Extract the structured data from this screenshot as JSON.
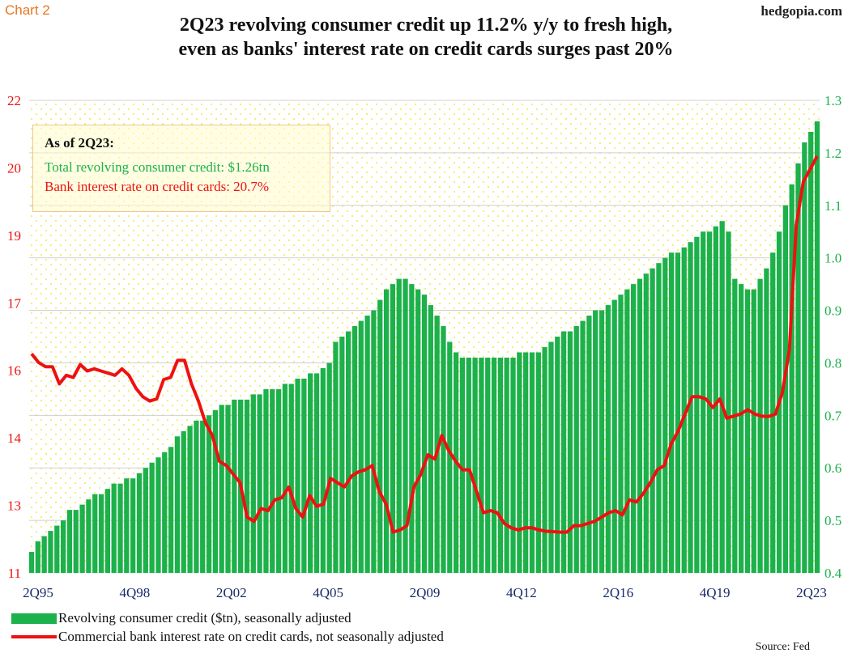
{
  "header": {
    "chart_label": "Chart 2",
    "site": "hedgopia.com",
    "title_line1": "2Q23 revolving consumer credit up 11.2% y/y to fresh high,",
    "title_line2": "even as banks' interest rate on credit cards surges past 20%"
  },
  "annotation": {
    "heading": "As of 2Q23:",
    "line1": "Total revolving consumer credit: $1.26tn",
    "line2": "Bank interest rate on credit cards: 20.7%"
  },
  "legend": {
    "series1": "Revolving consumer credit ($tn), seasonally adjusted",
    "series2": "Commercial bank interest rate on credit cards, not seasonally adjusted"
  },
  "source": "Source: Fed",
  "colors": {
    "bar": "#1cb14a",
    "line": "#ee1111",
    "left_axis": "#ee1111",
    "right_axis": "#1cb14a",
    "x_axis": "#1a2a6c",
    "dots": "#f2ec6a"
  },
  "chart_data": {
    "type": "bar",
    "x_tick_labels": [
      "2Q95",
      "4Q98",
      "2Q02",
      "4Q05",
      "2Q09",
      "4Q12",
      "2Q16",
      "4Q19",
      "2Q23"
    ],
    "left_axis": {
      "range": [
        11,
        22
      ],
      "tick_labels": [
        "11",
        "13",
        "14",
        "16",
        "17",
        "19",
        "20",
        "22"
      ]
    },
    "right_axis": {
      "range": [
        0.4,
        1.3
      ],
      "tick_labels": [
        "0.4",
        "0.5",
        "0.6",
        "0.7",
        "0.8",
        "0.9",
        "1.0",
        "1.1",
        "1.2",
        "1.3"
      ]
    },
    "series": [
      {
        "name": "Revolving consumer credit ($tn), seasonally adjusted",
        "type": "bar",
        "axis": "right",
        "values": [
          0.44,
          0.46,
          0.47,
          0.48,
          0.49,
          0.5,
          0.52,
          0.52,
          0.53,
          0.54,
          0.55,
          0.55,
          0.56,
          0.57,
          0.57,
          0.58,
          0.58,
          0.59,
          0.6,
          0.61,
          0.62,
          0.63,
          0.64,
          0.66,
          0.67,
          0.68,
          0.69,
          0.69,
          0.7,
          0.71,
          0.72,
          0.72,
          0.73,
          0.73,
          0.73,
          0.74,
          0.74,
          0.75,
          0.75,
          0.75,
          0.76,
          0.76,
          0.77,
          0.77,
          0.78,
          0.78,
          0.79,
          0.8,
          0.84,
          0.85,
          0.86,
          0.87,
          0.88,
          0.89,
          0.9,
          0.92,
          0.94,
          0.95,
          0.96,
          0.96,
          0.95,
          0.94,
          0.93,
          0.91,
          0.89,
          0.87,
          0.84,
          0.82,
          0.81,
          0.81,
          0.81,
          0.81,
          0.81,
          0.81,
          0.81,
          0.81,
          0.81,
          0.82,
          0.82,
          0.82,
          0.82,
          0.83,
          0.84,
          0.85,
          0.86,
          0.86,
          0.87,
          0.88,
          0.89,
          0.9,
          0.9,
          0.91,
          0.92,
          0.93,
          0.94,
          0.95,
          0.96,
          0.97,
          0.98,
          0.99,
          1.0,
          1.01,
          1.01,
          1.02,
          1.03,
          1.04,
          1.05,
          1.05,
          1.06,
          1.07,
          1.05,
          0.96,
          0.95,
          0.94,
          0.94,
          0.96,
          0.98,
          1.01,
          1.05,
          1.1,
          1.14,
          1.18,
          1.22,
          1.24,
          1.26
        ]
      },
      {
        "name": "Commercial bank interest rate on credit cards, not seasonally adjusted",
        "type": "line",
        "axis": "left",
        "points": [
          [
            1995.25,
            16.1
          ],
          [
            1995.5,
            15.9
          ],
          [
            1995.75,
            15.8
          ],
          [
            1996.0,
            15.8
          ],
          [
            1996.25,
            15.4
          ],
          [
            1996.5,
            15.6
          ],
          [
            1996.75,
            15.55
          ],
          [
            1997.0,
            15.85
          ],
          [
            1997.25,
            15.7
          ],
          [
            1997.5,
            15.75
          ],
          [
            1997.75,
            15.7
          ],
          [
            1998.0,
            15.65
          ],
          [
            1998.25,
            15.6
          ],
          [
            1998.5,
            15.75
          ],
          [
            1998.75,
            15.6
          ],
          [
            1999.0,
            15.3
          ],
          [
            1999.25,
            15.1
          ],
          [
            1999.5,
            15.0
          ],
          [
            1999.75,
            15.05
          ],
          [
            2000.0,
            15.5
          ],
          [
            2000.25,
            15.55
          ],
          [
            2000.5,
            15.95
          ],
          [
            2000.75,
            15.95
          ],
          [
            2001.0,
            15.4
          ],
          [
            2001.25,
            15.0
          ],
          [
            2001.5,
            14.5
          ],
          [
            2001.75,
            14.2
          ],
          [
            2002.0,
            13.6
          ],
          [
            2002.25,
            13.5
          ],
          [
            2002.5,
            13.3
          ],
          [
            2002.75,
            13.1
          ],
          [
            2003.0,
            12.3
          ],
          [
            2003.25,
            12.2
          ],
          [
            2003.5,
            12.5
          ],
          [
            2003.75,
            12.45
          ],
          [
            2004.0,
            12.7
          ],
          [
            2004.25,
            12.75
          ],
          [
            2004.5,
            13.0
          ],
          [
            2004.75,
            12.5
          ],
          [
            2005.0,
            12.3
          ],
          [
            2005.25,
            12.8
          ],
          [
            2005.5,
            12.55
          ],
          [
            2005.75,
            12.6
          ],
          [
            2006.0,
            13.2
          ],
          [
            2006.25,
            13.1
          ],
          [
            2006.5,
            13.0
          ],
          [
            2006.75,
            13.25
          ],
          [
            2007.0,
            13.35
          ],
          [
            2007.25,
            13.4
          ],
          [
            2007.5,
            13.5
          ],
          [
            2007.75,
            12.9
          ],
          [
            2008.0,
            12.6
          ],
          [
            2008.25,
            11.95
          ],
          [
            2008.5,
            12.0
          ],
          [
            2008.75,
            12.1
          ],
          [
            2009.0,
            13.0
          ],
          [
            2009.25,
            13.3
          ],
          [
            2009.5,
            13.75
          ],
          [
            2009.75,
            13.65
          ],
          [
            2010.0,
            14.2
          ],
          [
            2010.25,
            13.85
          ],
          [
            2010.5,
            13.6
          ],
          [
            2010.75,
            13.4
          ],
          [
            2011.0,
            13.4
          ],
          [
            2011.25,
            12.9
          ],
          [
            2011.5,
            12.4
          ],
          [
            2011.75,
            12.45
          ],
          [
            2012.0,
            12.4
          ],
          [
            2012.25,
            12.15
          ],
          [
            2012.5,
            12.05
          ],
          [
            2012.75,
            12.0
          ],
          [
            2013.0,
            12.05
          ],
          [
            2013.25,
            12.05
          ],
          [
            2013.5,
            12.0
          ],
          [
            2013.75,
            11.97
          ],
          [
            2014.0,
            11.96
          ],
          [
            2014.25,
            11.95
          ],
          [
            2014.5,
            11.95
          ],
          [
            2014.75,
            12.1
          ],
          [
            2015.0,
            12.1
          ],
          [
            2015.25,
            12.15
          ],
          [
            2015.5,
            12.2
          ],
          [
            2015.75,
            12.3
          ],
          [
            2016.0,
            12.4
          ],
          [
            2016.25,
            12.45
          ],
          [
            2016.5,
            12.35
          ],
          [
            2016.75,
            12.7
          ],
          [
            2017.0,
            12.65
          ],
          [
            2017.25,
            12.85
          ],
          [
            2017.5,
            13.1
          ],
          [
            2017.75,
            13.4
          ],
          [
            2018.0,
            13.5
          ],
          [
            2018.25,
            14.0
          ],
          [
            2018.5,
            14.3
          ],
          [
            2018.75,
            14.7
          ],
          [
            2019.0,
            15.1
          ],
          [
            2019.25,
            15.1
          ],
          [
            2019.5,
            15.05
          ],
          [
            2019.75,
            14.85
          ],
          [
            2020.0,
            15.05
          ],
          [
            2020.25,
            14.6
          ],
          [
            2020.5,
            14.65
          ],
          [
            2020.75,
            14.7
          ],
          [
            2021.0,
            14.8
          ],
          [
            2021.25,
            14.7
          ],
          [
            2021.5,
            14.65
          ],
          [
            2021.75,
            14.64
          ],
          [
            2022.0,
            14.7
          ],
          [
            2022.25,
            15.2
          ],
          [
            2022.5,
            16.2
          ],
          [
            2022.75,
            19.1
          ],
          [
            2023.0,
            20.1
          ],
          [
            2023.25,
            20.4
          ],
          [
            2023.5,
            20.7
          ]
        ]
      }
    ],
    "grid": "horizontal",
    "legend_position": "bottom-left"
  }
}
